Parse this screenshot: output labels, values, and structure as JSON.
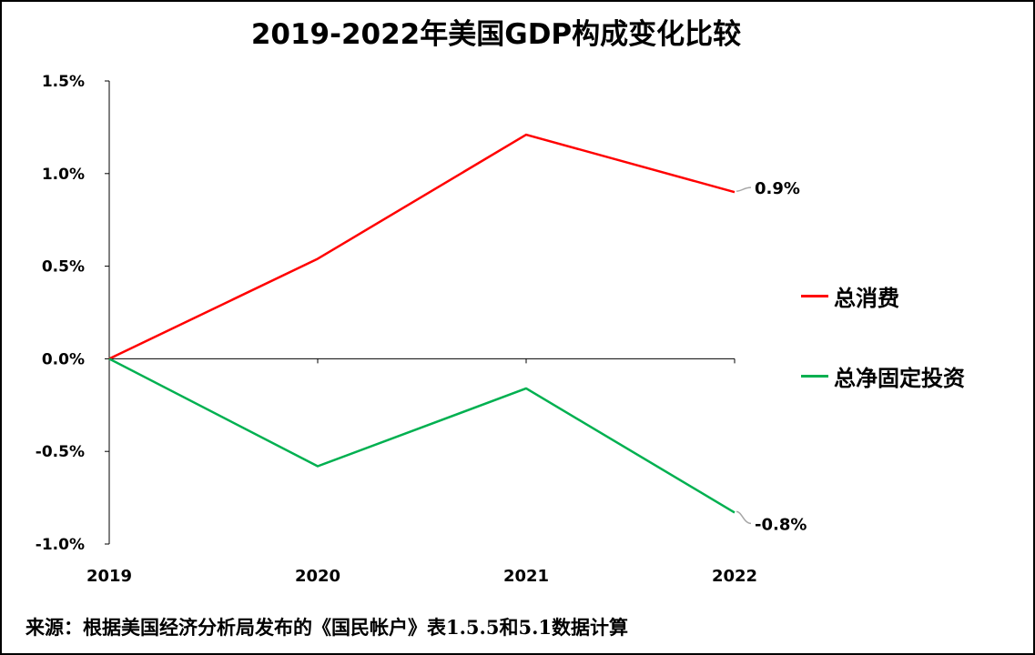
{
  "chart_data": {
    "type": "line",
    "title": "2019-2022年美国GDP构成变化比较",
    "categories": [
      "2019",
      "2020",
      "2021",
      "2022"
    ],
    "ylim": [
      -1.0,
      1.5
    ],
    "yticks": [
      "1.5%",
      "1.0%",
      "0.5%",
      "0.0%",
      "-0.5%",
      "-1.0%"
    ],
    "ytick_values": [
      1.5,
      1.0,
      0.5,
      0.0,
      -0.5,
      -1.0
    ],
    "series": [
      {
        "name": "总消费",
        "values": [
          0.0,
          0.54,
          1.21,
          0.9
        ],
        "color": "#ff0000",
        "end_label": "0.9%"
      },
      {
        "name": "总净固定投资",
        "values": [
          0.0,
          -0.58,
          -0.16,
          -0.83
        ],
        "color": "#00b050",
        "end_label": "-0.8%"
      }
    ],
    "legend": "right",
    "source": "来源：根据美国经济分析局发布的《国民帐户》表1.5.5和5.1数据计算"
  }
}
